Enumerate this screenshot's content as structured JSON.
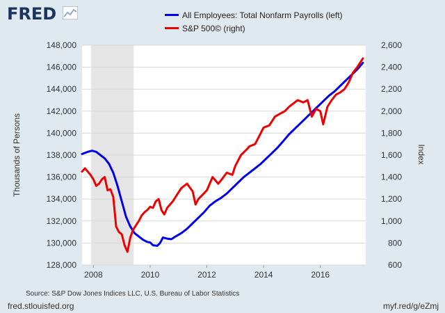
{
  "brand": {
    "logo_text": "FRED",
    "badge_icon": "chart-line-icon"
  },
  "legend": {
    "items": [
      {
        "label": "All Employees: Total Nonfarm Payrolls (left)",
        "color": "#0000ee"
      },
      {
        "label": "S&P 500© (right)",
        "color": "#ee0000"
      }
    ]
  },
  "footer": {
    "source": "Source: S&P Dow Jones Indices LLC, U.S. Bureau of Labor Statistics",
    "site": "fred.stlouisfed.org",
    "short_link": "myf.red/g/eZmj"
  },
  "chart_data": {
    "type": "line",
    "ylabel_left": "Thousands of Persons",
    "ylabel_right": "Index",
    "xlim": [
      2007.6,
      2017.6
    ],
    "ylim_left": [
      128000,
      148000
    ],
    "ylim_right": [
      600,
      2600
    ],
    "x_ticks": [
      2008,
      2010,
      2012,
      2014,
      2016
    ],
    "x_tick_labels": [
      "2008",
      "2010",
      "2012",
      "2014",
      "2016"
    ],
    "y_left_ticks": [
      128000,
      130000,
      132000,
      134000,
      136000,
      138000,
      140000,
      142000,
      144000,
      146000,
      148000
    ],
    "y_left_tick_labels": [
      "128,000",
      "130,000",
      "132,000",
      "134,000",
      "136,000",
      "138,000",
      "140,000",
      "142,000",
      "144,000",
      "146,000",
      "148,000"
    ],
    "y_right_ticks": [
      600,
      800,
      1000,
      1200,
      1400,
      1600,
      1800,
      2000,
      2200,
      2400,
      2600
    ],
    "y_right_tick_labels": [
      "600",
      "800",
      "1,000",
      "1,200",
      "1,400",
      "1,600",
      "1,800",
      "2,000",
      "2,200",
      "2,400",
      "2,600"
    ],
    "grid": true,
    "recession": {
      "start": 2007.92,
      "end": 2009.42,
      "color": "#e5e5e5"
    },
    "series": [
      {
        "name": "All Employees: Total Nonfarm Payrolls (left)",
        "axis": "left",
        "color": "#0000ee",
        "x": [
          2007.6,
          2007.8,
          2007.95,
          2008.1,
          2008.25,
          2008.4,
          2008.55,
          2008.7,
          2008.85,
          2009.0,
          2009.15,
          2009.3,
          2009.45,
          2009.6,
          2009.75,
          2009.9,
          2010.0,
          2010.1,
          2010.25,
          2010.35,
          2010.45,
          2010.6,
          2010.75,
          2010.9,
          2011.1,
          2011.3,
          2011.5,
          2011.7,
          2011.9,
          2012.1,
          2012.3,
          2012.5,
          2012.7,
          2012.9,
          2013.1,
          2013.3,
          2013.5,
          2013.7,
          2013.9,
          2014.1,
          2014.3,
          2014.5,
          2014.7,
          2014.9,
          2015.1,
          2015.3,
          2015.5,
          2015.7,
          2015.9,
          2016.1,
          2016.3,
          2016.5,
          2016.7,
          2016.9,
          2017.1,
          2017.3,
          2017.5
        ],
        "values": [
          138100,
          138300,
          138400,
          138300,
          138000,
          137700,
          137200,
          136400,
          135200,
          133800,
          132400,
          131500,
          130900,
          130600,
          130300,
          130100,
          130050,
          129800,
          129750,
          130000,
          130500,
          130400,
          130350,
          130600,
          130900,
          131300,
          131800,
          132300,
          132800,
          133400,
          133800,
          134100,
          134500,
          135000,
          135500,
          136000,
          136400,
          136800,
          137200,
          137700,
          138200,
          138700,
          139300,
          139900,
          140400,
          140900,
          141400,
          141900,
          142400,
          142900,
          143400,
          143800,
          144300,
          144800,
          145300,
          145800,
          146400
        ]
      },
      {
        "name": "S&P 500© (right)",
        "axis": "right",
        "color": "#ee0000",
        "x": [
          2007.6,
          2007.7,
          2007.8,
          2007.9,
          2008.0,
          2008.1,
          2008.2,
          2008.3,
          2008.4,
          2008.5,
          2008.6,
          2008.7,
          2008.8,
          2008.9,
          2009.0,
          2009.1,
          2009.2,
          2009.3,
          2009.4,
          2009.5,
          2009.6,
          2009.7,
          2009.8,
          2009.9,
          2010.0,
          2010.1,
          2010.2,
          2010.3,
          2010.4,
          2010.5,
          2010.6,
          2010.7,
          2010.8,
          2010.9,
          2011.0,
          2011.1,
          2011.3,
          2011.5,
          2011.6,
          2011.7,
          2011.85,
          2012.0,
          2012.2,
          2012.4,
          2012.5,
          2012.7,
          2012.9,
          2013.0,
          2013.2,
          2013.4,
          2013.5,
          2013.7,
          2013.9,
          2014.0,
          2014.2,
          2014.4,
          2014.6,
          2014.75,
          2014.9,
          2015.0,
          2015.2,
          2015.4,
          2015.55,
          2015.7,
          2015.85,
          2016.0,
          2016.1,
          2016.25,
          2016.4,
          2016.55,
          2016.7,
          2016.85,
          2017.0,
          2017.15,
          2017.3,
          2017.5
        ],
        "values": [
          1450,
          1480,
          1450,
          1420,
          1380,
          1320,
          1340,
          1380,
          1400,
          1280,
          1290,
          1220,
          950,
          900,
          880,
          780,
          720,
          850,
          920,
          960,
          1000,
          1050,
          1080,
          1100,
          1130,
          1120,
          1180,
          1200,
          1100,
          1060,
          1120,
          1150,
          1180,
          1220,
          1260,
          1300,
          1340,
          1270,
          1150,
          1200,
          1240,
          1280,
          1400,
          1340,
          1370,
          1440,
          1420,
          1500,
          1600,
          1650,
          1680,
          1700,
          1800,
          1850,
          1870,
          1950,
          1980,
          2000,
          2040,
          2060,
          2100,
          2080,
          2100,
          1950,
          2020,
          2000,
          1880,
          2040,
          2100,
          2150,
          2170,
          2200,
          2260,
          2350,
          2400,
          2480
        ]
      }
    ]
  }
}
